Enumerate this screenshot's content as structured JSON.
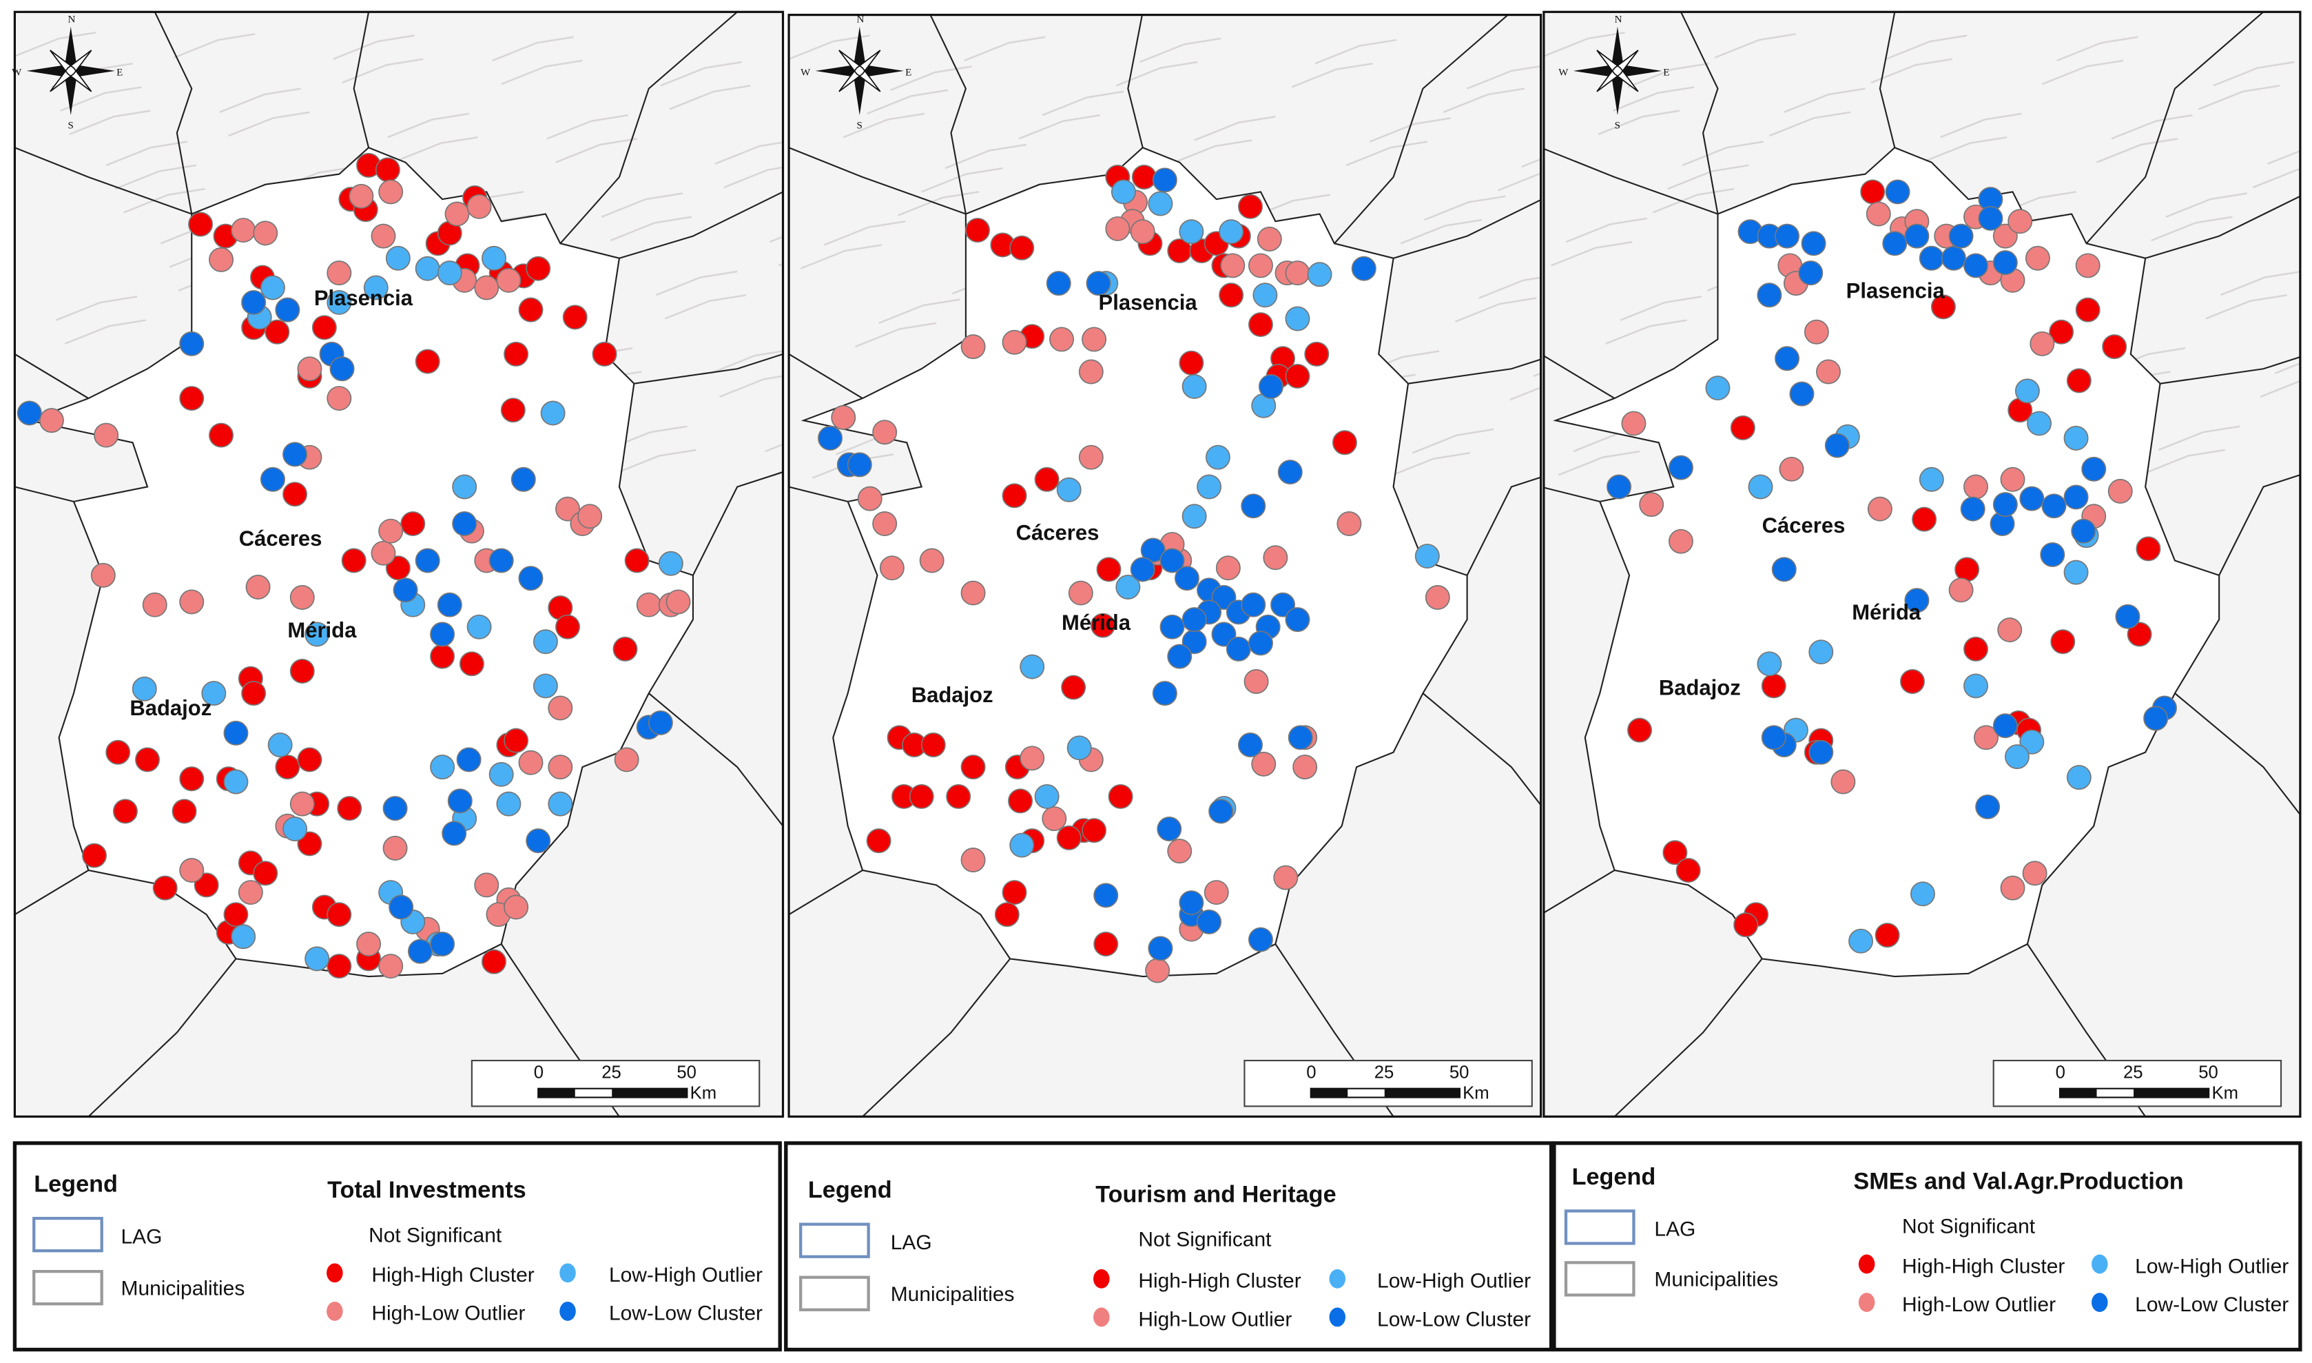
{
  "colors": {
    "high_high": "#f20000",
    "high_low": "#f08080",
    "low_high": "#4ab0f5",
    "low_low": "#0a6ee6",
    "lag_outline": "#7090c0",
    "municipalities_outline": "#9a9a9a"
  },
  "icons": {
    "compass": "north-arrow-compass-rose"
  },
  "compass": {
    "n": "N",
    "s": "S",
    "e": "E",
    "w": "W"
  },
  "scale_bar": {
    "ticks": [
      "0",
      "25",
      "50"
    ],
    "unit": "Km"
  },
  "cities": [
    "Plasencia",
    "Cáceres",
    "Mérida",
    "Badajoz"
  ],
  "legend": {
    "heading": "Legend",
    "lag": "LAG",
    "municipalities": "Municipalities",
    "not_significant": "Not Significant",
    "high_high": "High-High Cluster",
    "high_low": "High-Low Outlier",
    "low_high": "Low-High Outlier",
    "low_low": "Low-Low Cluster"
  },
  "panels": [
    {
      "title": "Total Investments"
    },
    {
      "title": "Tourism and Heritage"
    },
    {
      "title": "SMEs and Val.Agr.Production"
    }
  ]
}
